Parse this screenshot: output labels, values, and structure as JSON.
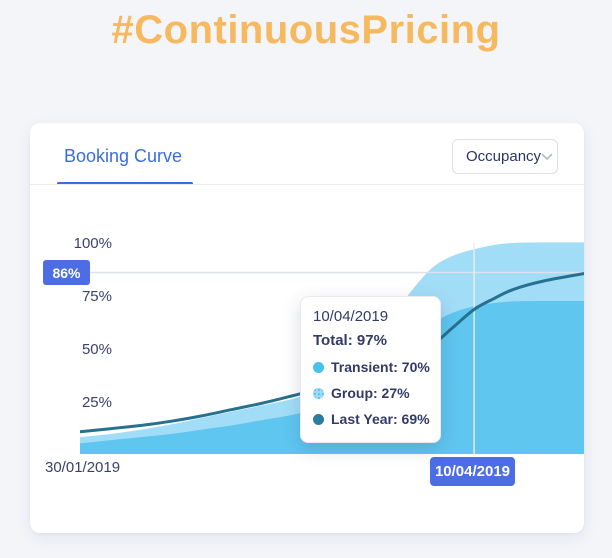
{
  "page": {
    "title": "#ContinuousPricing",
    "title_color": "#F6B95F",
    "background": "#F3F5F9"
  },
  "card": {
    "tab": {
      "label": "Booking Curve",
      "accent_color": "#3A6EDF"
    },
    "dropdown": {
      "value": "Occupancy",
      "icon": "chevron-down-icon"
    }
  },
  "chart_data": {
    "type": "area",
    "title": "Booking Curve",
    "metric": "Occupancy",
    "ylim": [
      0,
      100
    ],
    "y_ticks": [
      "100%",
      "75%",
      "50%",
      "25%"
    ],
    "y_tick_values": [
      100,
      75,
      50,
      25
    ],
    "x_start_label": "30/01/2019",
    "x_end_label": "10/04/2019",
    "grid": "off",
    "legend_position": "tooltip",
    "x": [
      0,
      0.06,
      0.12,
      0.18,
      0.24,
      0.3,
      0.36,
      0.42,
      0.46,
      0.5,
      0.54,
      0.58,
      0.62,
      0.66,
      0.7,
      0.74,
      0.782,
      0.82,
      0.86,
      0.92,
      1.0
    ],
    "series": [
      {
        "name": "Transient",
        "kind": "area",
        "stacked": true,
        "color": "#5FC6EF",
        "values": [
          5,
          6.5,
          8,
          9.5,
          11.5,
          13.5,
          16,
          18.5,
          21,
          24,
          29,
          37,
          46,
          55,
          62,
          67,
          70,
          71.5,
          72.3,
          72.5,
          72.5
        ]
      },
      {
        "name": "Group",
        "kind": "area",
        "stacked": true,
        "color": "#A2DDF7",
        "values": [
          3,
          3,
          3.5,
          4.5,
          5.5,
          6.5,
          7,
          7.5,
          8,
          9,
          11,
          15,
          19,
          23,
          26.5,
          27,
          27,
          27.5,
          27.7,
          27.8,
          27.8
        ]
      },
      {
        "name": "Last Year",
        "kind": "line",
        "stacked": false,
        "color": "#25718F",
        "values": [
          10.5,
          12,
          13.5,
          15.5,
          18,
          21,
          24,
          27.5,
          30,
          33,
          36.5,
          40.5,
          44.5,
          48,
          52,
          60,
          68.5,
          73.5,
          78,
          82,
          85.5
        ]
      }
    ],
    "highlight": {
      "y_label": "86%",
      "y_value": 86,
      "y_badge_color": "#4C6DE3",
      "x_fraction": 0.782,
      "x_label": "10/04/2019",
      "x_badge_color": "#4C6DE3",
      "crosshair_color": "#E7ECF2"
    },
    "tooltip": {
      "date": "10/04/2019",
      "total_text": "Total: 97%",
      "total_value": 97,
      "rows": [
        {
          "name": "Transient",
          "value": 70,
          "text": "Transient: 70%",
          "color": "#47C2ED",
          "pattern": "solid"
        },
        {
          "name": "Group",
          "value": 27,
          "text": "Group: 27%",
          "color": "#9BD9F4",
          "pattern": "dots"
        },
        {
          "name": "Last Year",
          "value": 69,
          "text": "Last Year: 69%",
          "color": "#2B7C9D",
          "pattern": "solid"
        }
      ]
    }
  }
}
